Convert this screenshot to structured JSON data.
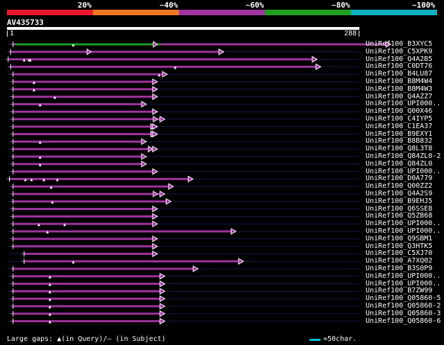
{
  "legend": {
    "labels": [
      "20%",
      "~40%",
      "~60%",
      "~80%",
      "~100%"
    ],
    "colors": [
      "#e8192c",
      "#f07820",
      "#a034a0",
      "#20a020",
      "#10b0c0"
    ]
  },
  "query": {
    "title": "AV435733",
    "start_label": "1",
    "end_label": "288"
  },
  "hits": [
    {
      "label": "UniRef100_B3XYC5",
      "start": 6,
      "end": 313,
      "hl": 123,
      "color": "#a034a0",
      "green": [
        8,
        126
      ],
      "tri": [
        {
          "x": 55
        }
      ]
    },
    {
      "label": "UniRef100_C5XPK9",
      "start": 4,
      "end": 177,
      "hl": 69,
      "color": "#a034a0",
      "tri": []
    },
    {
      "label": "UniRef100_Q4A2B5",
      "start": 2,
      "end": 253,
      "hl": 0,
      "color": "#a034a0",
      "tri": [
        {
          "x": 15
        },
        {
          "x": 19
        },
        {
          "x": 20
        }
      ]
    },
    {
      "label": "UniRef100_C0DT76",
      "start": 4,
      "end": 256,
      "hl": 0,
      "color": "#a034a0",
      "tri": [
        {
          "x": 138
        }
      ]
    },
    {
      "label": "UniRef100_B4LU87",
      "start": 6,
      "end": 131,
      "hl": 0,
      "color": "#a034a0",
      "tri": [
        {
          "x": 125
        }
      ]
    },
    {
      "label": "UniRef100_B8M4W4",
      "start": 6,
      "end": 123,
      "hl": 0,
      "color": "#a034a0",
      "tri": [
        {
          "x": 23
        }
      ]
    },
    {
      "label": "UniRef100_B8M4W3",
      "start": 6,
      "end": 123,
      "hl": 0,
      "color": "#a034a0",
      "tri": [
        {
          "x": 23
        }
      ]
    },
    {
      "label": "UniRef100_Q4AZZ7",
      "start": 6,
      "end": 123,
      "hl": 0,
      "color": "#a034a0",
      "tri": [
        {
          "x": 40
        }
      ]
    },
    {
      "label": "UniRef100_UPI000..",
      "start": 6,
      "end": 114,
      "hl": 0,
      "color": "#a034a0",
      "tri": [
        {
          "x": 28
        }
      ]
    },
    {
      "label": "UniRef100_Q00X46",
      "start": 6,
      "end": 123,
      "hl": 0,
      "color": "#a034a0",
      "tri": []
    },
    {
      "label": "UniRef100_C4IYP5",
      "start": 6,
      "end": 129,
      "hl": 123,
      "color": "#a034a0",
      "tri": []
    },
    {
      "label": "UniRef100_C1EA37",
      "start": 6,
      "end": 123,
      "hl": 121,
      "color": "#a034a0",
      "tri": []
    },
    {
      "label": "UniRef100_B9EXY1",
      "start": 6,
      "end": 123,
      "hl": 121,
      "color": "#a034a0",
      "tri": []
    },
    {
      "label": "UniRef100_B8B832",
      "start": 6,
      "end": 114,
      "hl": 0,
      "color": "#a034a0",
      "tri": [
        {
          "x": 28
        }
      ]
    },
    {
      "label": "UniRef100_Q8L3T8",
      "start": 6,
      "end": 123,
      "hl": 119,
      "color": "#a034a0",
      "tri": []
    },
    {
      "label": "UniRef100_Q84ZL0-2",
      "start": 6,
      "end": 114,
      "hl": 0,
      "color": "#a034a0",
      "tri": [
        {
          "x": 28
        }
      ]
    },
    {
      "label": "UniRef100_Q84ZL0",
      "start": 6,
      "end": 114,
      "hl": 0,
      "color": "#a034a0",
      "tri": [
        {
          "x": 28
        }
      ]
    },
    {
      "label": "UniRef100_UPI000..",
      "start": 6,
      "end": 123,
      "hl": 0,
      "color": "#a034a0",
      "tri": []
    },
    {
      "label": "UniRef100_D0A779",
      "start": 3,
      "end": 152,
      "hl": 0,
      "color": "#a034a0",
      "tri": [
        {
          "x": 16
        },
        {
          "x": 21
        },
        {
          "x": 31
        },
        {
          "x": 42
        }
      ]
    },
    {
      "label": "UniRef100_Q00ZZ2",
      "start": 6,
      "end": 136,
      "hl": 0,
      "color": "#a034a0",
      "tri": [
        {
          "x": 37
        }
      ]
    },
    {
      "label": "UniRef100_Q4A2S9",
      "start": 6,
      "end": 129,
      "hl": 123,
      "color": "#a034a0",
      "tri": []
    },
    {
      "label": "UniRef100_B9EHJ5",
      "start": 6,
      "end": 134,
      "hl": 0,
      "color": "#a034a0",
      "tri": [
        {
          "x": 38
        }
      ]
    },
    {
      "label": "UniRef100_Q6SSE8",
      "start": 6,
      "end": 123,
      "hl": 0,
      "color": "#a034a0",
      "tri": []
    },
    {
      "label": "UniRef100_Q5ZB68",
      "start": 6,
      "end": 123,
      "hl": 0,
      "color": "#a034a0",
      "tri": []
    },
    {
      "label": "UniRef100_UPI000..",
      "start": 6,
      "end": 123,
      "hl": 0,
      "color": "#a034a0",
      "tri": [
        {
          "x": 27
        },
        {
          "x": 48
        }
      ]
    },
    {
      "label": "UniRef100_UPI000..",
      "start": 6,
      "end": 187,
      "hl": 0,
      "color": "#a034a0",
      "tri": [
        {
          "x": 34
        }
      ]
    },
    {
      "label": "UniRef100_Q9SBM1",
      "start": 6,
      "end": 123,
      "hl": 0,
      "color": "#a034a0",
      "tri": []
    },
    {
      "label": "UniRef100_Q3HTK5",
      "start": 6,
      "end": 123,
      "hl": 0,
      "color": "#a034a0",
      "tri": []
    },
    {
      "label": "UniRef100_C5XJ70",
      "start": 15,
      "end": 123,
      "hl": 0,
      "color": "#a034a0",
      "tri": []
    },
    {
      "label": "UniRef100_A7XQ02",
      "start": 15,
      "end": 193,
      "hl": 0,
      "color": "#a034a0",
      "tri": [
        {
          "x": 55
        }
      ]
    },
    {
      "label": "UniRef100_B3S0P9",
      "start": 6,
      "end": 156,
      "hl": 0,
      "color": "#a034a0",
      "tri": []
    },
    {
      "label": "UniRef100_UPI000..",
      "start": 6,
      "end": 129,
      "hl": 0,
      "color": "#a034a0",
      "tri": [
        {
          "x": 36
        }
      ]
    },
    {
      "label": "UniRef100_UPI000..",
      "start": 6,
      "end": 129,
      "hl": 0,
      "color": "#a034a0",
      "tri": [
        {
          "x": 36
        }
      ]
    },
    {
      "label": "UniRef100_B7ZW99",
      "start": 6,
      "end": 129,
      "hl": 0,
      "color": "#a034a0",
      "tri": [
        {
          "x": 36
        }
      ]
    },
    {
      "label": "UniRef100_Q05860-5",
      "start": 6,
      "end": 129,
      "hl": 0,
      "color": "#a034a0",
      "tri": [
        {
          "x": 36
        }
      ]
    },
    {
      "label": "UniRef100_Q05860-2",
      "start": 6,
      "end": 129,
      "hl": 0,
      "color": "#a034a0",
      "tri": [
        {
          "x": 36
        }
      ]
    },
    {
      "label": "UniRef100_Q05860-3",
      "start": 6,
      "end": 129,
      "hl": 0,
      "color": "#a034a0",
      "tri": [
        {
          "x": 36
        }
      ]
    },
    {
      "label": "UniRef100_Q05860-6",
      "start": 6,
      "end": 129,
      "hl": 0,
      "color": "#a034a0",
      "tri": [
        {
          "x": 36
        }
      ]
    }
  ],
  "footer": {
    "gaps_text": "Large gaps: ▲(in Query)/— (in Subject)",
    "scale_text": "=50char.",
    "scale_color": "#00bcd4"
  }
}
